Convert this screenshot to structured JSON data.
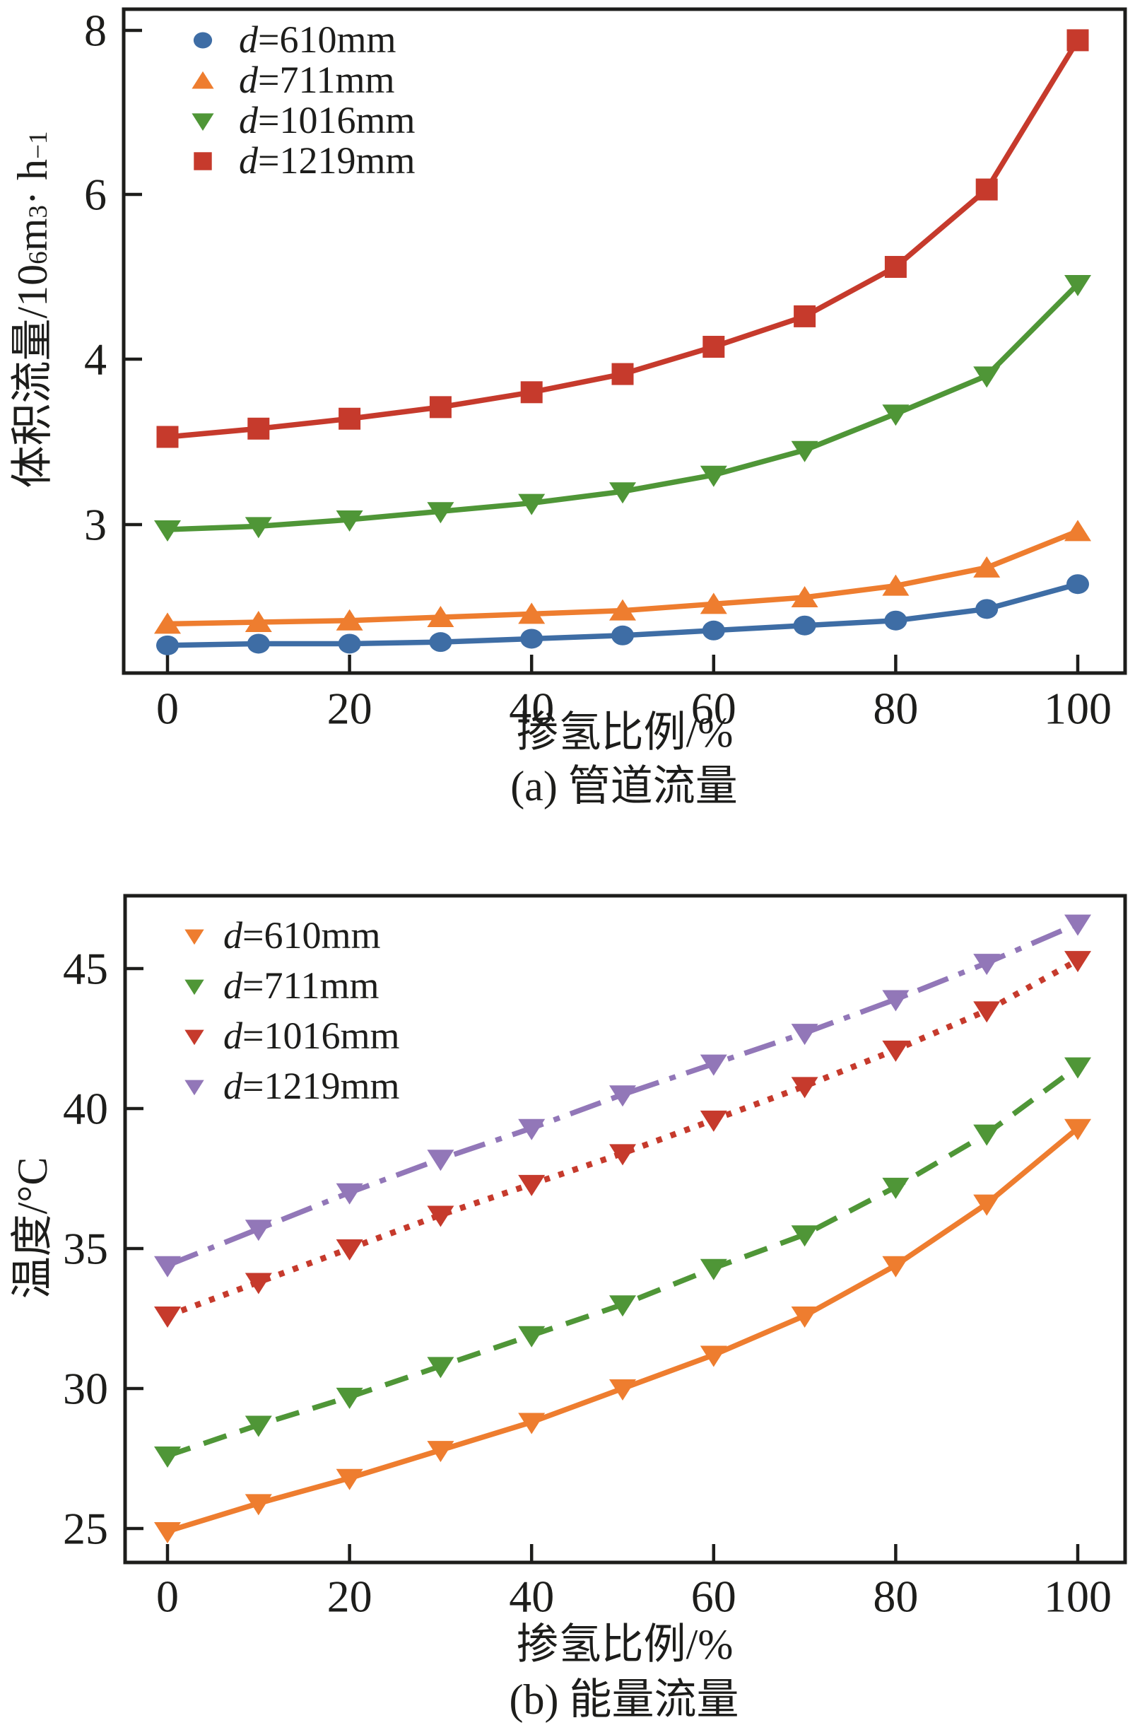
{
  "figure": {
    "background": "#ffffff",
    "text_color": "#1d1d1b",
    "chart_a": {
      "caption": "(a) 管道流量",
      "xlabel": "掺氢比例/%",
      "ylabel": {
        "p1": "体积流量/10",
        "s1": "6",
        "p2": "m",
        "s2": "3",
        "p3": " · h",
        "s3": "−1"
      }
    },
    "chart_b": {
      "caption": "(b) 能量流量",
      "xlabel": "掺氢比例/%",
      "ylabel": "温度/°C"
    }
  },
  "chart_data": [
    {
      "type": "line",
      "panel": "a",
      "title": "(a) 管道流量",
      "xlabel": "掺氢比例/%",
      "ylabel": "体积流量/10^6 m^3·h^-1",
      "x": [
        0,
        10,
        20,
        30,
        40,
        50,
        60,
        70,
        80,
        90,
        100
      ],
      "x_ticks": [
        0,
        20,
        40,
        60,
        80,
        100
      ],
      "y_ticks": [
        3,
        4,
        6,
        8
      ],
      "y_axis_note": "labeled ticks 3,4,6,8 drawn equally spaced (non-linear scale)",
      "ylim": [
        2.1,
        8.26
      ],
      "grid": false,
      "legend_position": "top-left-inside",
      "series": [
        {
          "name": "d=610mm",
          "color": "#3e6da5",
          "marker": "circle",
          "line": "solid",
          "values": [
            2.27,
            2.28,
            2.28,
            2.29,
            2.31,
            2.33,
            2.36,
            2.39,
            2.42,
            2.49,
            2.64
          ]
        },
        {
          "name": "d=711mm",
          "color": "#ee7d2f",
          "marker": "triangle-up",
          "line": "solid",
          "values": [
            2.4,
            2.41,
            2.42,
            2.44,
            2.46,
            2.48,
            2.52,
            2.56,
            2.63,
            2.74,
            2.96
          ]
        },
        {
          "name": "d=1016mm",
          "color": "#4f9637",
          "marker": "triangle-down",
          "line": "solid",
          "values": [
            2.97,
            2.99,
            3.03,
            3.08,
            3.13,
            3.2,
            3.3,
            3.45,
            3.67,
            3.9,
            4.91
          ]
        },
        {
          "name": "d=1219mm",
          "color": "#c63a2c",
          "marker": "square",
          "line": "solid",
          "values": [
            3.53,
            3.58,
            3.64,
            3.71,
            3.8,
            3.91,
            4.15,
            4.52,
            5.12,
            6.06,
            7.88
          ]
        }
      ]
    },
    {
      "type": "line",
      "panel": "b",
      "title": "(b) 能量流量",
      "xlabel": "掺氢比例/%",
      "ylabel": "温度/°C",
      "x": [
        0,
        10,
        20,
        30,
        40,
        50,
        60,
        70,
        80,
        90,
        100
      ],
      "x_ticks": [
        0,
        20,
        40,
        60,
        80,
        100
      ],
      "y_ticks": [
        25,
        30,
        35,
        40,
        45
      ],
      "ylim": [
        23.8,
        47.6
      ],
      "grid": false,
      "legend_position": "top-left-inside",
      "series": [
        {
          "name": "d=610mm",
          "color": "#ee7d2f",
          "marker": "triangle-down",
          "line": "solid",
          "values": [
            24.9,
            25.9,
            26.8,
            27.8,
            28.8,
            30.0,
            31.2,
            32.6,
            34.4,
            36.6,
            39.3
          ]
        },
        {
          "name": "d=711mm",
          "color": "#4f9637",
          "marker": "triangle-down",
          "line": "dashed",
          "values": [
            27.6,
            28.7,
            29.7,
            30.8,
            31.9,
            33.0,
            34.3,
            35.5,
            37.2,
            39.1,
            41.5
          ]
        },
        {
          "name": "d=1016mm",
          "color": "#c63a2c",
          "marker": "triangle-down",
          "line": "dotted",
          "values": [
            32.6,
            33.8,
            35.0,
            36.2,
            37.3,
            38.4,
            39.6,
            40.8,
            42.1,
            43.5,
            45.3
          ]
        },
        {
          "name": "d=1219mm",
          "color": "#9277b8",
          "marker": "triangle-down",
          "line": "dash-dot",
          "values": [
            34.4,
            35.7,
            37.0,
            38.2,
            39.3,
            40.5,
            41.6,
            42.7,
            43.9,
            45.2,
            46.6
          ]
        }
      ]
    }
  ]
}
